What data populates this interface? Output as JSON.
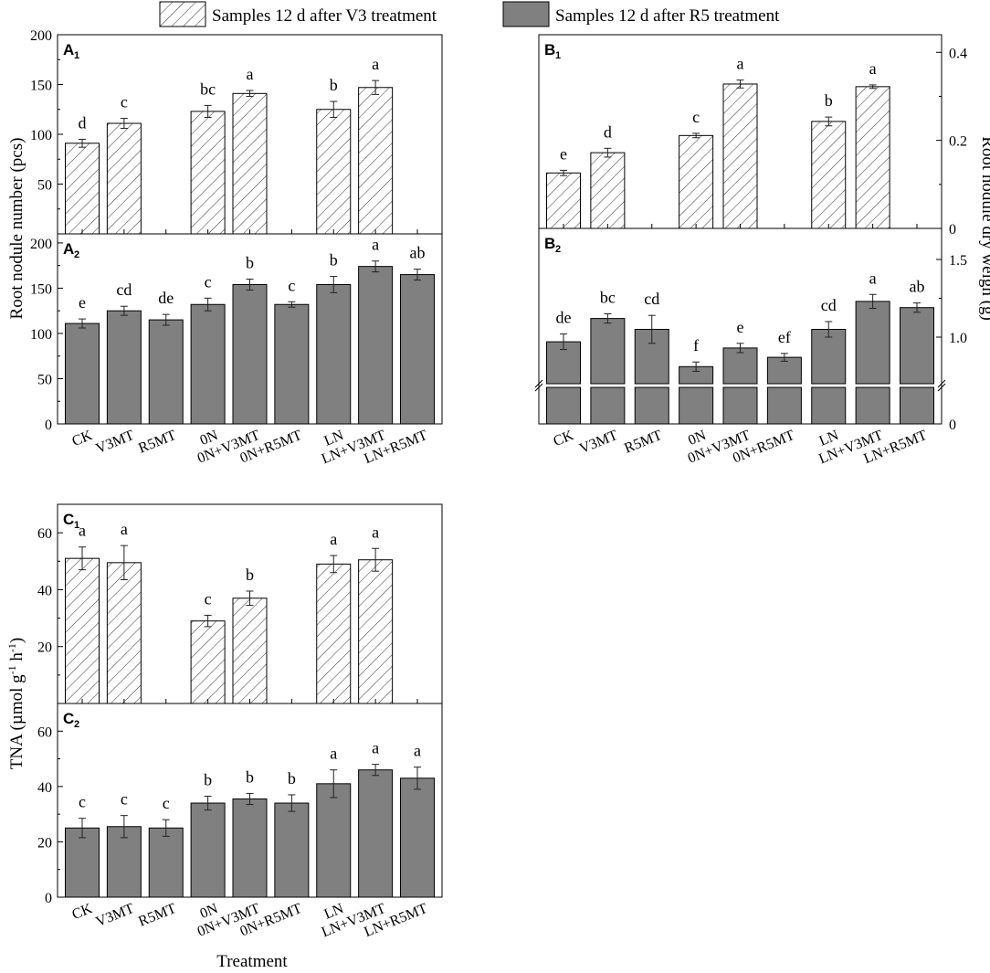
{
  "legend": {
    "hatched_label": "Samples 12 d after V3 treatment",
    "solid_label": "Samples 12 d after R5 treatment"
  },
  "colors": {
    "solid_fill": "#808080",
    "hatched_fill": "#ffffff",
    "stroke": "#000000"
  },
  "axis_titles": {
    "root_nodule_number": "Root nodule number (pcs)",
    "root_nodule_dry_weight": "Root nodule dry weigh (g)",
    "tna_main": "TNA (µmol g",
    "tna_sup1": "-1",
    "tna_mid": " h",
    "tna_sup2": "-1",
    "tna_end": ")",
    "treatment": "Treatment"
  },
  "chart_data": [
    {
      "panel": "A1",
      "type": "bar",
      "style": "hatched",
      "panel_letter": "A",
      "panel_sub": "1",
      "categories": [
        "CK",
        "V3MT",
        "R5MT",
        "0N",
        "0N+V3MT",
        "0N+R5MT",
        "LN",
        "LN+V3MT",
        "LN+R5MT"
      ],
      "values": [
        91,
        111,
        null,
        123,
        141,
        null,
        125,
        147,
        null
      ],
      "errors": [
        4,
        5,
        null,
        6,
        3,
        null,
        8,
        7,
        null
      ],
      "letters": [
        "d",
        "c",
        "",
        "bc",
        "a",
        "",
        "b",
        "a",
        ""
      ],
      "ylim": [
        0,
        200
      ],
      "yticks": [
        "0",
        "50",
        "100",
        "150",
        "200"
      ],
      "ylabel": "Root nodule number (pcs)"
    },
    {
      "panel": "A2",
      "type": "bar",
      "style": "solid",
      "panel_letter": "A",
      "panel_sub": "2",
      "categories": [
        "CK",
        "V3MT",
        "R5MT",
        "0N",
        "0N+V3MT",
        "0N+R5MT",
        "LN",
        "LN+V3MT",
        "LN+R5MT"
      ],
      "values": [
        111,
        125,
        115,
        132,
        154,
        132,
        154,
        174,
        165
      ],
      "errors": [
        5,
        5,
        6,
        7,
        6,
        3,
        9,
        6,
        6
      ],
      "letters": [
        "e",
        "cd",
        "de",
        "c",
        "b",
        "c",
        "b",
        "a",
        "ab"
      ],
      "ylim": [
        0,
        210
      ],
      "yticks": [
        "0",
        "50",
        "100",
        "150",
        "200"
      ]
    },
    {
      "panel": "B1",
      "type": "bar",
      "style": "hatched",
      "panel_letter": "B",
      "panel_sub": "1",
      "categories": [
        "CK",
        "V3MT",
        "R5MT",
        "0N",
        "0N+V3MT",
        "0N+R5MT",
        "LN",
        "LN+V3MT",
        "LN+R5MT"
      ],
      "values": [
        0.126,
        0.172,
        null,
        0.211,
        0.328,
        null,
        0.243,
        0.322,
        null
      ],
      "errors": [
        0.006,
        0.01,
        null,
        0.005,
        0.009,
        null,
        0.01,
        0.004,
        null
      ],
      "letters": [
        "e",
        "d",
        "",
        "c",
        "a",
        "",
        "b",
        "a",
        ""
      ],
      "ylim": [
        0,
        0.44
      ],
      "yticks": [
        "0",
        "0.2",
        "0.4"
      ],
      "ylabel": "Root nodule dry weigh (g)",
      "y_axis_side": "right"
    },
    {
      "panel": "B2",
      "type": "bar",
      "style": "solid",
      "broken_axis": true,
      "panel_letter": "B",
      "panel_sub": "2",
      "categories": [
        "CK",
        "V3MT",
        "R5MT",
        "0N",
        "0N+V3MT",
        "0N+R5MT",
        "LN",
        "LN+V3MT",
        "LN+R5MT"
      ],
      "values": [
        0.97,
        1.12,
        1.05,
        0.81,
        0.93,
        0.87,
        1.05,
        1.23,
        1.19
      ],
      "errors": [
        0.05,
        0.03,
        0.09,
        0.03,
        0.03,
        0.025,
        0.05,
        0.045,
        0.03
      ],
      "letters": [
        "de",
        "bc",
        "cd",
        "f",
        "e",
        "ef",
        "cd",
        "a",
        "ab"
      ],
      "ylim_upper": [
        0.7,
        1.7
      ],
      "yticks_upper": [
        "1.0",
        "1.5"
      ],
      "ytick_lower": "0",
      "y_axis_side": "right"
    },
    {
      "panel": "C1",
      "type": "bar",
      "style": "hatched",
      "panel_letter": "C",
      "panel_sub": "1",
      "categories": [
        "CK",
        "V3MT",
        "R5MT",
        "0N",
        "0N+V3MT",
        "0N+R5MT",
        "LN",
        "LN+V3MT",
        "LN+R5MT"
      ],
      "values": [
        51,
        49.5,
        null,
        29,
        37,
        null,
        49,
        50.5,
        null
      ],
      "errors": [
        4,
        6,
        null,
        2,
        2.5,
        null,
        3,
        4,
        null
      ],
      "letters": [
        "a",
        "a",
        "",
        "c",
        "b",
        "",
        "a",
        "a",
        ""
      ],
      "ylim": [
        0,
        70
      ],
      "yticks": [
        "0",
        "20",
        "40",
        "60"
      ]
    },
    {
      "panel": "C2",
      "type": "bar",
      "style": "solid",
      "panel_letter": "C",
      "panel_sub": "2",
      "categories": [
        "CK",
        "V3MT",
        "R5MT",
        "0N",
        "0N+V3MT",
        "0N+R5MT",
        "LN",
        "LN+V3MT",
        "LN+R5MT"
      ],
      "values": [
        25,
        25.5,
        25,
        34,
        35.5,
        34,
        41,
        46,
        43
      ],
      "errors": [
        3.5,
        4,
        3,
        2.5,
        2,
        3,
        5,
        2,
        4
      ],
      "letters": [
        "c",
        "c",
        "c",
        "b",
        "b",
        "b",
        "a",
        "a",
        "a"
      ],
      "ylim": [
        0,
        70
      ],
      "yticks": [
        "0",
        "20",
        "40",
        "60"
      ],
      "xlabel": "Treatment"
    }
  ]
}
